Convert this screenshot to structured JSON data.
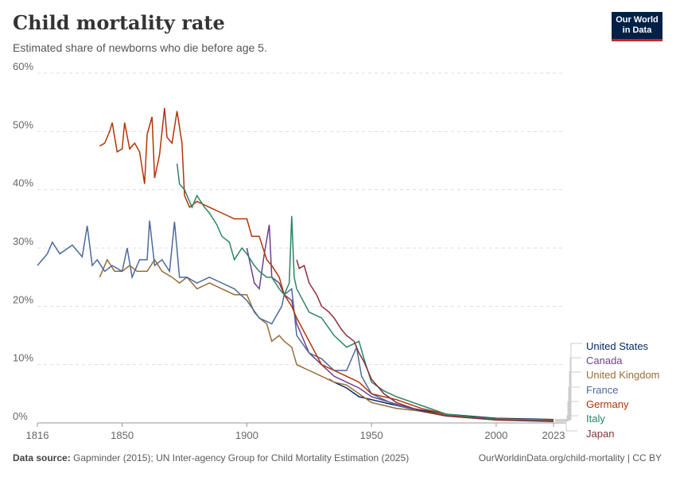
{
  "header": {
    "title": "Child mortality rate",
    "subtitle": "Estimated share of newborns who die before age 5.",
    "logo": "Our World in Data"
  },
  "footer": {
    "source_label": "Data source:",
    "source": "Gapminder (2015); UN Inter-agency Group for Child Mortality Estimation (2025)",
    "url": "OurWorldinData.org/child-mortality | CC BY"
  },
  "chart_data": {
    "type": "line",
    "title": "Child mortality rate",
    "xlim": [
      1816,
      2023
    ],
    "ylim": [
      0,
      60
    ],
    "grid": true,
    "legend": "right",
    "yticks": [
      "0%",
      "10%",
      "20%",
      "30%",
      "40%",
      "50%",
      "60%"
    ],
    "xticks": [
      "1816",
      "1850",
      "1900",
      "1950",
      "2000",
      "2023"
    ],
    "series": [
      {
        "name": "United States",
        "color": "#00295b",
        "points": [
          [
            1933,
            7.5
          ],
          [
            1935,
            7
          ],
          [
            1940,
            6
          ],
          [
            1945,
            4.5
          ],
          [
            1950,
            4
          ],
          [
            1960,
            3
          ],
          [
            1970,
            2.2
          ],
          [
            1980,
            1.5
          ],
          [
            2000,
            0.8
          ],
          [
            2023,
            0.6
          ]
        ]
      },
      {
        "name": "Canada",
        "color": "#6d3e91",
        "points": [
          [
            1900,
            30
          ],
          [
            1903,
            24
          ],
          [
            1905,
            23
          ],
          [
            1907,
            29
          ],
          [
            1909,
            34
          ],
          [
            1910,
            25
          ],
          [
            1913,
            24
          ],
          [
            1915,
            22
          ],
          [
            1918,
            21
          ],
          [
            1920,
            17
          ],
          [
            1925,
            12
          ],
          [
            1930,
            10
          ],
          [
            1935,
            8
          ],
          [
            1940,
            7
          ],
          [
            1945,
            6
          ],
          [
            1950,
            4.5
          ],
          [
            1960,
            3.2
          ],
          [
            1970,
            2
          ],
          [
            1980,
            1.2
          ],
          [
            2000,
            0.6
          ],
          [
            2023,
            0.5
          ]
        ]
      },
      {
        "name": "United Kingdom",
        "color": "#996d39",
        "points": [
          [
            1841,
            25
          ],
          [
            1844,
            28
          ],
          [
            1847,
            26
          ],
          [
            1850,
            26
          ],
          [
            1853,
            27
          ],
          [
            1856,
            26
          ],
          [
            1860,
            26
          ],
          [
            1863,
            28
          ],
          [
            1866,
            26
          ],
          [
            1870,
            25
          ],
          [
            1873,
            24
          ],
          [
            1876,
            25
          ],
          [
            1880,
            23
          ],
          [
            1885,
            24
          ],
          [
            1890,
            23
          ],
          [
            1895,
            22
          ],
          [
            1900,
            22
          ],
          [
            1903,
            19
          ],
          [
            1905,
            18
          ],
          [
            1908,
            17
          ],
          [
            1910,
            14
          ],
          [
            1913,
            15
          ],
          [
            1915,
            14
          ],
          [
            1918,
            13
          ],
          [
            1920,
            10
          ],
          [
            1925,
            9
          ],
          [
            1930,
            8
          ],
          [
            1935,
            7
          ],
          [
            1940,
            6.5
          ],
          [
            1945,
            5
          ],
          [
            1950,
            3.5
          ],
          [
            1960,
            2.5
          ],
          [
            1970,
            2
          ],
          [
            1980,
            1.4
          ],
          [
            2000,
            0.7
          ],
          [
            2023,
            0.5
          ]
        ]
      },
      {
        "name": "France",
        "color": "#4c6a9c",
        "points": [
          [
            1816,
            27
          ],
          [
            1820,
            29
          ],
          [
            1822,
            31
          ],
          [
            1825,
            29
          ],
          [
            1830,
            30.5
          ],
          [
            1834,
            28.5
          ],
          [
            1836,
            33.8
          ],
          [
            1838,
            27
          ],
          [
            1840,
            28
          ],
          [
            1843,
            26
          ],
          [
            1846,
            27
          ],
          [
            1850,
            26
          ],
          [
            1852,
            30
          ],
          [
            1854,
            25
          ],
          [
            1857,
            28
          ],
          [
            1860,
            28
          ],
          [
            1861,
            34.7
          ],
          [
            1863,
            27
          ],
          [
            1866,
            28
          ],
          [
            1869,
            26
          ],
          [
            1871,
            34.5
          ],
          [
            1873,
            25
          ],
          [
            1876,
            25
          ],
          [
            1880,
            24
          ],
          [
            1885,
            25
          ],
          [
            1890,
            24
          ],
          [
            1895,
            23
          ],
          [
            1900,
            21
          ],
          [
            1905,
            18
          ],
          [
            1910,
            17
          ],
          [
            1914,
            20
          ],
          [
            1915,
            22
          ],
          [
            1918,
            23
          ],
          [
            1920,
            15
          ],
          [
            1925,
            12
          ],
          [
            1930,
            11
          ],
          [
            1935,
            9
          ],
          [
            1940,
            9
          ],
          [
            1944,
            13
          ],
          [
            1946,
            8
          ],
          [
            1950,
            5
          ],
          [
            1960,
            3
          ],
          [
            1970,
            2
          ],
          [
            1980,
            1.2
          ],
          [
            2000,
            0.5
          ],
          [
            2023,
            0.4
          ]
        ]
      },
      {
        "name": "Germany",
        "color": "#b13507",
        "points": [
          [
            1841,
            47.5
          ],
          [
            1843,
            48
          ],
          [
            1845,
            50
          ],
          [
            1846,
            51.5
          ],
          [
            1848,
            46.5
          ],
          [
            1850,
            47
          ],
          [
            1851,
            51.5
          ],
          [
            1853,
            47
          ],
          [
            1855,
            48
          ],
          [
            1857,
            46.5
          ],
          [
            1859,
            41
          ],
          [
            1860,
            49.5
          ],
          [
            1862,
            52.5
          ],
          [
            1863,
            42
          ],
          [
            1865,
            46
          ],
          [
            1867,
            54
          ],
          [
            1868,
            49
          ],
          [
            1870,
            48
          ],
          [
            1872,
            53.5
          ],
          [
            1874,
            48
          ],
          [
            1875,
            39
          ],
          [
            1877,
            37
          ],
          [
            1880,
            38
          ],
          [
            1885,
            37
          ],
          [
            1890,
            36
          ],
          [
            1895,
            35
          ],
          [
            1900,
            35
          ],
          [
            1902,
            32
          ],
          [
            1905,
            32
          ],
          [
            1908,
            28
          ],
          [
            1910,
            27
          ],
          [
            1913,
            25
          ],
          [
            1915,
            22
          ],
          [
            1918,
            20
          ],
          [
            1920,
            18
          ],
          [
            1925,
            14
          ],
          [
            1930,
            10
          ],
          [
            1935,
            9
          ],
          [
            1940,
            8
          ],
          [
            1945,
            7
          ],
          [
            1950,
            5
          ],
          [
            1960,
            4
          ],
          [
            1970,
            2.5
          ],
          [
            1980,
            1.5
          ],
          [
            1990,
            0.9
          ],
          [
            2000,
            0.5
          ],
          [
            2023,
            0.4
          ]
        ]
      },
      {
        "name": "Italy",
        "color": "#2c8465",
        "points": [
          [
            1872,
            44.5
          ],
          [
            1873,
            41
          ],
          [
            1875,
            40
          ],
          [
            1878,
            37
          ],
          [
            1880,
            39
          ],
          [
            1883,
            37
          ],
          [
            1885,
            36
          ],
          [
            1888,
            34
          ],
          [
            1890,
            32
          ],
          [
            1893,
            31
          ],
          [
            1895,
            28
          ],
          [
            1898,
            30
          ],
          [
            1900,
            29
          ],
          [
            1903,
            27
          ],
          [
            1905,
            26
          ],
          [
            1908,
            25
          ],
          [
            1910,
            25
          ],
          [
            1913,
            23
          ],
          [
            1915,
            22
          ],
          [
            1917,
            24
          ],
          [
            1918,
            35.5
          ],
          [
            1919,
            25
          ],
          [
            1920,
            23
          ],
          [
            1925,
            19
          ],
          [
            1930,
            18
          ],
          [
            1935,
            15
          ],
          [
            1940,
            13
          ],
          [
            1945,
            14
          ],
          [
            1947,
            11
          ],
          [
            1950,
            7
          ],
          [
            1955,
            5.5
          ],
          [
            1960,
            4.5
          ],
          [
            1970,
            3
          ],
          [
            1980,
            1.5
          ],
          [
            2000,
            0.6
          ],
          [
            2023,
            0.3
          ]
        ]
      },
      {
        "name": "Japan",
        "color": "#883039",
        "points": [
          [
            1920,
            28
          ],
          [
            1921,
            26.5
          ],
          [
            1923,
            27
          ],
          [
            1925,
            24
          ],
          [
            1928,
            22
          ],
          [
            1930,
            20
          ],
          [
            1933,
            19
          ],
          [
            1935,
            18
          ],
          [
            1938,
            16
          ],
          [
            1940,
            15
          ],
          [
            1943,
            14
          ],
          [
            1945,
            12
          ],
          [
            1947,
            10.5
          ],
          [
            1950,
            7.5
          ],
          [
            1955,
            5
          ],
          [
            1960,
            3.5
          ],
          [
            1970,
            2
          ],
          [
            1980,
            1.2
          ],
          [
            2000,
            0.5
          ],
          [
            2023,
            0.25
          ]
        ]
      }
    ]
  }
}
